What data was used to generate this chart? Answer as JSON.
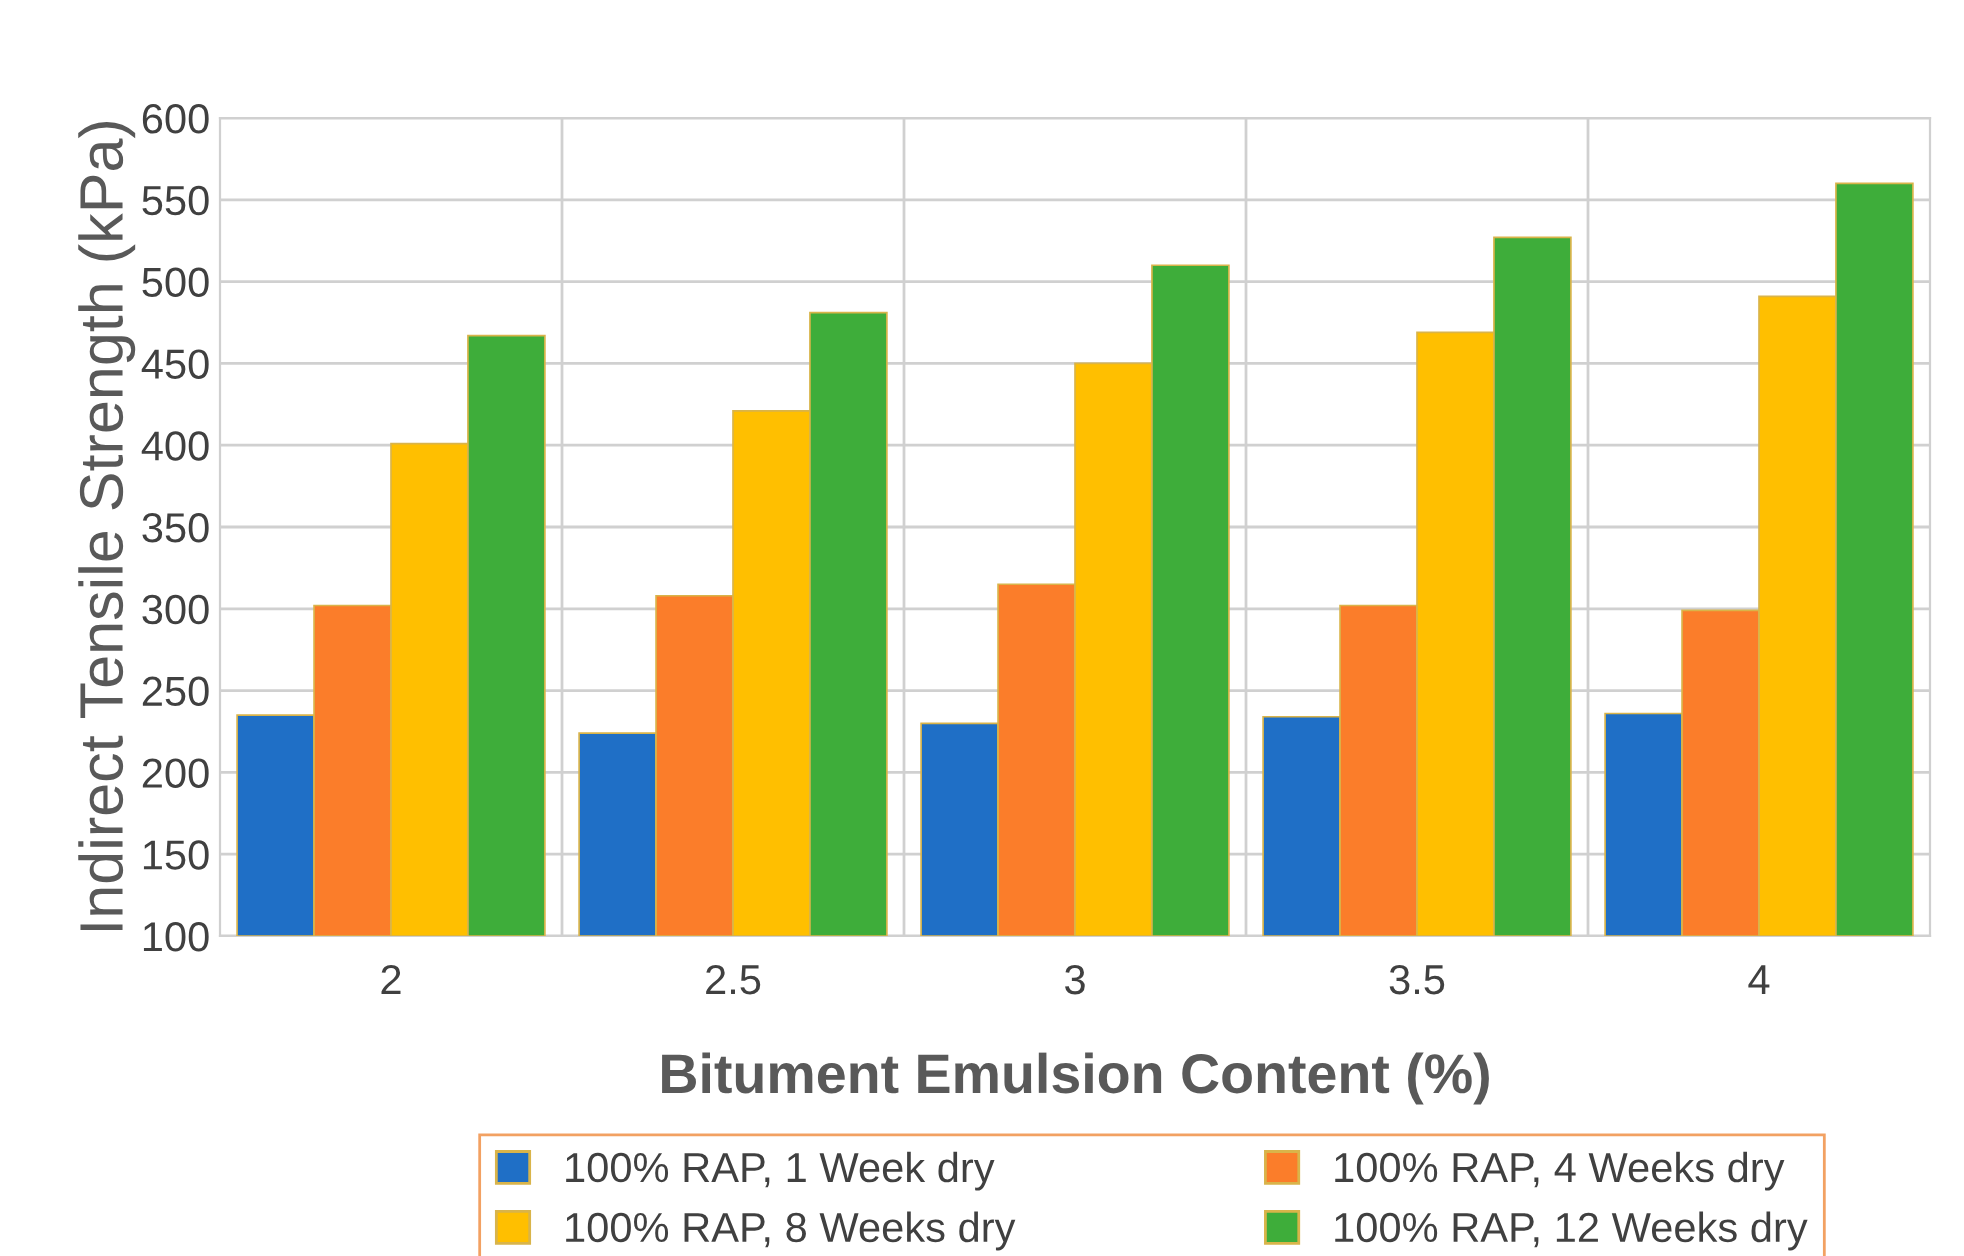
{
  "chart_data": {
    "type": "bar",
    "xlabel": "Bitument Emulsion Content (%)",
    "ylabel": "Indirect Tensile Strength (kPa)",
    "categories": [
      "2",
      "2.5",
      "3",
      "3.5",
      "4"
    ],
    "series": [
      {
        "name": "100% RAP, 1 Week dry",
        "color": "#1f6fc6",
        "values": [
          235,
          224,
          230,
          234,
          236
        ]
      },
      {
        "name": "100% RAP, 4 Weeks dry",
        "color": "#fb7d2a",
        "values": [
          302,
          308,
          315,
          302,
          299
        ]
      },
      {
        "name": "100% RAP, 8 Weeks dry",
        "color": "#ffbf00",
        "values": [
          401,
          421,
          450,
          469,
          491
        ]
      },
      {
        "name": "100% RAP, 12 Weeks dry",
        "color": "#3ead3a",
        "values": [
          467,
          481,
          510,
          527,
          560
        ]
      }
    ],
    "ylim": [
      100,
      600
    ],
    "yticks": [
      100,
      150,
      200,
      250,
      300,
      350,
      400,
      450,
      500,
      550,
      600
    ],
    "grid": true,
    "legend": "bottom"
  }
}
